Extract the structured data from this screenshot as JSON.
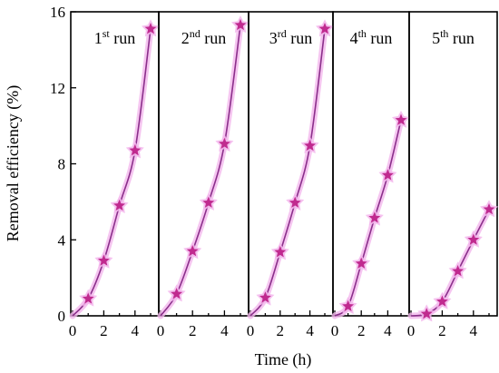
{
  "colors": {
    "line": "#8b2f8b",
    "marker": "#c02a8f",
    "marker_glow": "#f3b6ec",
    "frame": "#000000"
  },
  "chart_data": {
    "type": "line",
    "ylabel": "Removal efficiency (%)",
    "xlabel": "Time (h)",
    "ylim": [
      0,
      16
    ],
    "yticks": [
      "0",
      "4",
      "8",
      "12",
      "16"
    ],
    "xlim": [
      0,
      5
    ],
    "xticks": [
      "0",
      "2",
      "4"
    ],
    "marker": "star",
    "grid": false,
    "panels": [
      {
        "run_num": "1",
        "run_sup": "st",
        "run_word": "run",
        "x": [
          0,
          1,
          2,
          3,
          4,
          5
        ],
        "y": [
          0,
          0.9,
          2.9,
          5.8,
          8.7,
          15.1
        ]
      },
      {
        "run_num": "2",
        "run_sup": "nd",
        "run_word": "run",
        "x": [
          0,
          1,
          2,
          3,
          4,
          5
        ],
        "y": [
          0,
          1.15,
          3.4,
          5.95,
          9.05,
          15.3
        ]
      },
      {
        "run_num": "3",
        "run_sup": "rd",
        "run_word": "run",
        "x": [
          0,
          1,
          2,
          3,
          4,
          5
        ],
        "y": [
          0,
          0.95,
          3.35,
          5.95,
          8.95,
          15.1
        ]
      },
      {
        "run_num": "4",
        "run_sup": "th",
        "run_word": "run",
        "x": [
          0,
          1,
          2,
          3,
          4,
          5
        ],
        "y": [
          0,
          0.5,
          2.75,
          5.15,
          7.4,
          10.3
        ]
      },
      {
        "run_num": "5",
        "run_sup": "th",
        "run_word": "run",
        "x": [
          0,
          1,
          2,
          3,
          4,
          5
        ],
        "y": [
          0,
          0.1,
          0.75,
          2.35,
          4.0,
          5.6
        ]
      }
    ]
  }
}
